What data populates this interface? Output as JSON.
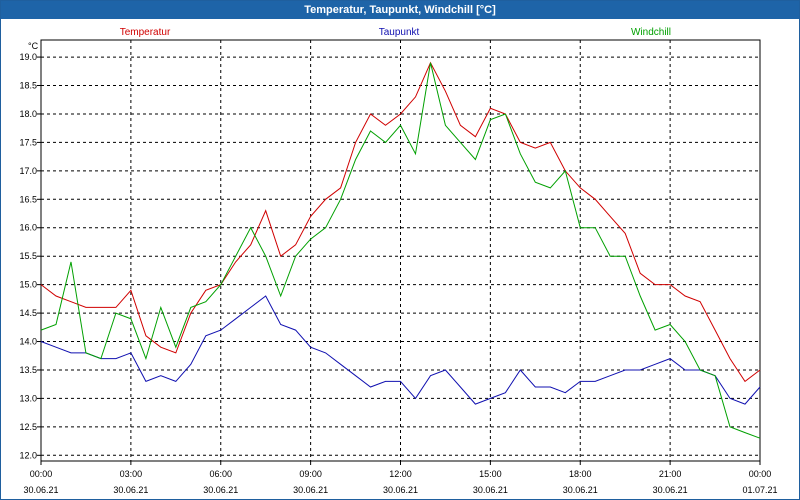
{
  "chart_data": {
    "type": "line",
    "title": "Temperatur, Taupunkt, Windchill [°C]",
    "ylabel": "°C",
    "ylim": [
      11.9,
      19.3
    ],
    "yticks": [
      "12.0",
      "12.5",
      "13.0",
      "13.5",
      "14.0",
      "14.5",
      "15.0",
      "15.5",
      "16.0",
      "16.5",
      "17.0",
      "17.5",
      "18.0",
      "18.5",
      "19.0"
    ],
    "xlim_hours": [
      0,
      24
    ],
    "xticks": [
      {
        "time": "00:00",
        "date": "30.06.21"
      },
      {
        "time": "03:00",
        "date": "30.06.21"
      },
      {
        "time": "06:00",
        "date": "30.06.21"
      },
      {
        "time": "09:00",
        "date": "30.06.21"
      },
      {
        "time": "12:00",
        "date": "30.06.21"
      },
      {
        "time": "15:00",
        "date": "30.06.21"
      },
      {
        "time": "18:00",
        "date": "30.06.21"
      },
      {
        "time": "21:00",
        "date": "30.06.21"
      },
      {
        "time": "00:00",
        "date": "01.07.21"
      }
    ],
    "grid": true,
    "legend_placement": "top",
    "series": [
      {
        "name": "Temperatur",
        "color": "#d00000",
        "x": [
          0,
          0.5,
          1,
          1.5,
          2,
          2.5,
          3,
          3.5,
          4,
          4.5,
          5,
          5.5,
          6,
          6.5,
          7,
          7.5,
          8,
          8.5,
          9,
          9.5,
          10,
          10.5,
          11,
          11.5,
          12,
          12.5,
          13,
          13.5,
          14,
          14.5,
          15,
          15.5,
          16,
          16.5,
          17,
          17.5,
          18,
          18.5,
          19,
          19.5,
          20,
          20.5,
          21,
          21.5,
          22,
          22.5,
          23,
          23.5,
          24
        ],
        "values": [
          15.0,
          14.8,
          14.7,
          14.6,
          14.6,
          14.6,
          14.9,
          14.1,
          13.9,
          13.8,
          14.5,
          14.9,
          15.0,
          15.4,
          15.7,
          16.3,
          15.5,
          15.7,
          16.2,
          16.5,
          16.7,
          17.5,
          18.0,
          17.8,
          18.0,
          18.3,
          18.9,
          18.4,
          17.8,
          17.6,
          18.1,
          18.0,
          17.5,
          17.4,
          17.5,
          17.0,
          16.7,
          16.5,
          16.2,
          15.9,
          15.2,
          15.0,
          15.0,
          14.8,
          14.7,
          14.2,
          13.7,
          13.3,
          13.5
        ]
      },
      {
        "name": "Taupunkt",
        "color": "#1010b0",
        "x": [
          0,
          0.5,
          1,
          1.5,
          2,
          2.5,
          3,
          3.5,
          4,
          4.5,
          5,
          5.5,
          6,
          6.5,
          7,
          7.5,
          8,
          8.5,
          9,
          9.5,
          10,
          10.5,
          11,
          11.5,
          12,
          12.5,
          13,
          13.5,
          14,
          14.5,
          15,
          15.5,
          16,
          16.5,
          17,
          17.5,
          18,
          18.5,
          19,
          19.5,
          20,
          20.5,
          21,
          21.5,
          22,
          22.5,
          23,
          23.5,
          24
        ],
        "values": [
          14.0,
          13.9,
          13.8,
          13.8,
          13.7,
          13.7,
          13.8,
          13.3,
          13.4,
          13.3,
          13.6,
          14.1,
          14.2,
          14.4,
          14.6,
          14.8,
          14.3,
          14.2,
          13.9,
          13.8,
          13.6,
          13.4,
          13.2,
          13.3,
          13.3,
          13.0,
          13.4,
          13.5,
          13.2,
          12.9,
          13.0,
          13.1,
          13.5,
          13.2,
          13.2,
          13.1,
          13.3,
          13.3,
          13.4,
          13.5,
          13.5,
          13.6,
          13.7,
          13.5,
          13.5,
          13.4,
          13.0,
          12.9,
          13.2
        ]
      },
      {
        "name": "Windchill",
        "color": "#00a000",
        "x": [
          0,
          0.5,
          1,
          1.5,
          2,
          2.5,
          3,
          3.5,
          4,
          4.5,
          5,
          5.5,
          6,
          6.5,
          7,
          7.5,
          8,
          8.5,
          9,
          9.5,
          10,
          10.5,
          11,
          11.5,
          12,
          12.5,
          13,
          13.5,
          14,
          14.5,
          15,
          15.5,
          16,
          16.5,
          17,
          17.5,
          18,
          18.5,
          19,
          19.5,
          20,
          20.5,
          21,
          21.5,
          22,
          22.5,
          23,
          23.5,
          24
        ],
        "values": [
          14.2,
          14.3,
          15.4,
          13.8,
          13.7,
          14.5,
          14.4,
          13.7,
          14.6,
          13.9,
          14.6,
          14.7,
          15.0,
          15.5,
          16.0,
          15.5,
          14.8,
          15.5,
          15.8,
          16.0,
          16.5,
          17.2,
          17.7,
          17.5,
          17.8,
          17.3,
          18.9,
          17.8,
          17.5,
          17.2,
          17.9,
          18.0,
          17.3,
          16.8,
          16.7,
          17.0,
          16.0,
          16.0,
          15.5,
          15.5,
          14.8,
          14.2,
          14.3,
          14.0,
          13.5,
          13.4,
          12.5,
          12.4,
          12.3
        ]
      }
    ]
  }
}
